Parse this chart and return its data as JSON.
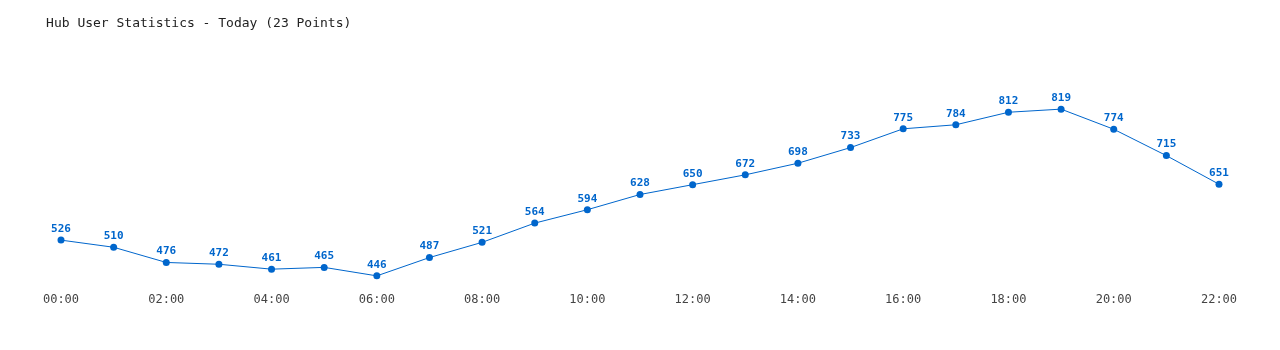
{
  "chart_data": {
    "type": "line",
    "title": "Hub User Statistics - Today (23 Points)",
    "x": [
      0,
      1,
      2,
      3,
      4,
      5,
      6,
      7,
      8,
      9,
      10,
      11,
      12,
      13,
      14,
      15,
      16,
      17,
      18,
      19,
      20,
      21,
      22
    ],
    "series": [
      {
        "color": "#0066cc",
        "values": [
          526,
          510,
          476,
          472,
          461,
          465,
          446,
          487,
          521,
          564,
          594,
          628,
          650,
          672,
          698,
          733,
          775,
          784,
          812,
          819,
          774,
          715,
          651
        ]
      }
    ],
    "xlim": [
      0,
      22
    ],
    "xticks": [
      {
        "value": 0,
        "label": "00:00"
      },
      {
        "value": 2,
        "label": "02:00"
      },
      {
        "value": 4,
        "label": "04:00"
      },
      {
        "value": 6,
        "label": "06:00"
      },
      {
        "value": 8,
        "label": "08:00"
      },
      {
        "value": 10,
        "label": "10:00"
      },
      {
        "value": 12,
        "label": "12:00"
      },
      {
        "value": 14,
        "label": "14:00"
      },
      {
        "value": 16,
        "label": "16:00"
      },
      {
        "value": 18,
        "label": "18:00"
      },
      {
        "value": 20,
        "label": "20:00"
      },
      {
        "value": 22,
        "label": "22:00"
      }
    ],
    "tick_labels": "x",
    "grid": false,
    "legend": false,
    "marker": "circle",
    "line_style": "solid",
    "data_labels": true
  }
}
